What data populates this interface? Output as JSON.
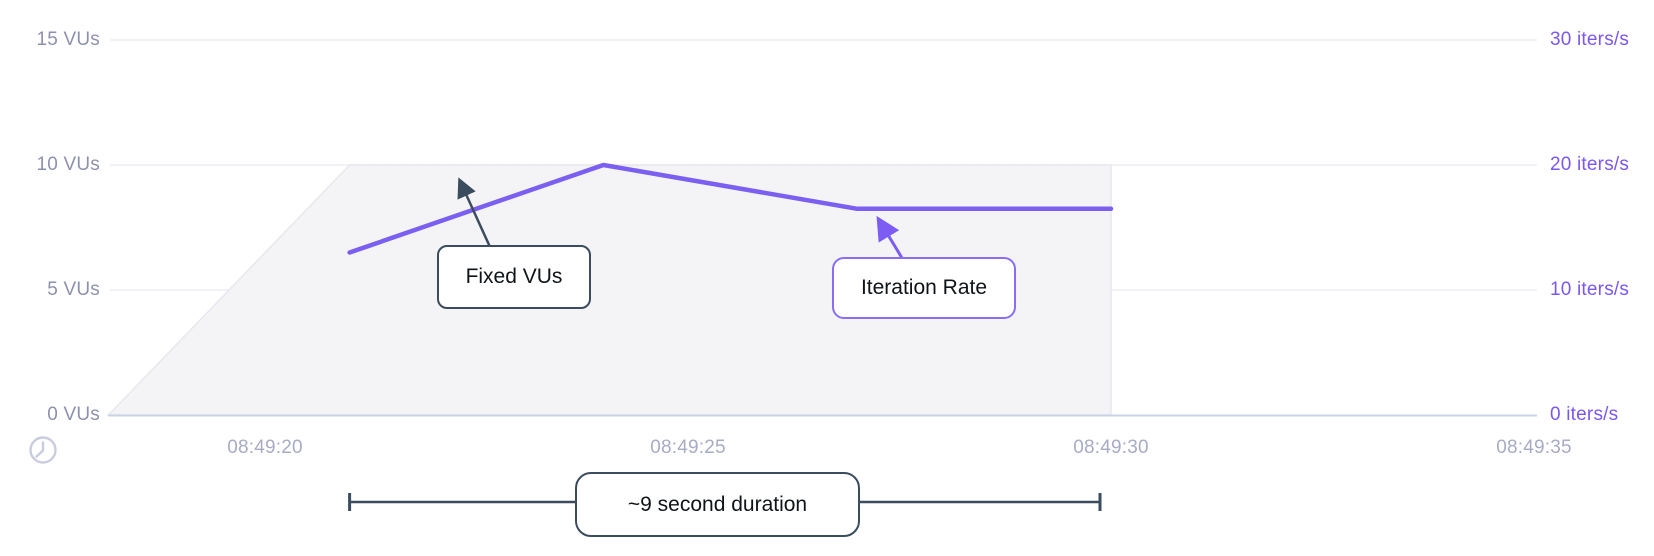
{
  "chart_data": {
    "type": "area+line",
    "title": "",
    "x_axis": {
      "unit": "time (hh:mm:ss)",
      "ticks": [
        {
          "t": 20,
          "label": "08:49:20"
        },
        {
          "t": 25,
          "label": "08:49:25"
        },
        {
          "t": 30,
          "label": "08:49:30"
        },
        {
          "t": 35,
          "label": "08:49:35"
        }
      ],
      "range_seconds_after_0849": [
        18.1,
        35.0
      ],
      "grid": false
    },
    "left_axis": {
      "title": "VUs",
      "range": [
        0,
        15
      ],
      "ticks": [
        {
          "v": 15,
          "label": "15 VUs"
        },
        {
          "v": 10,
          "label": "10 VUs"
        },
        {
          "v": 5,
          "label": "5 VUs"
        },
        {
          "v": 0,
          "label": "0 VUs"
        }
      ],
      "grid": true
    },
    "right_axis": {
      "title": "iters/s",
      "range": [
        0,
        30
      ],
      "ticks": [
        {
          "v": 30,
          "label": "30 iters/s"
        },
        {
          "v": 20,
          "label": "20 iters/s"
        },
        {
          "v": 10,
          "label": "10 iters/s"
        },
        {
          "v": 0,
          "label": "0 iters/s"
        }
      ],
      "grid": false
    },
    "series": [
      {
        "name": "VUs",
        "type": "area",
        "axis": "left",
        "points": [
          [
            18.15,
            0
          ],
          [
            21,
            10
          ],
          [
            30,
            10
          ],
          [
            30,
            0
          ]
        ]
      },
      {
        "name": "Iteration Rate",
        "type": "line",
        "axis": "right",
        "points": [
          [
            21,
            13
          ],
          [
            24,
            20
          ],
          [
            27,
            16.5
          ],
          [
            30,
            16.5
          ]
        ]
      }
    ],
    "legend_position": "none"
  },
  "annotations": {
    "fixed_vus": {
      "label": "Fixed VUs"
    },
    "iteration_rate": {
      "label": "Iteration Rate"
    },
    "duration": {
      "label": "~9 second duration"
    }
  },
  "icons": {
    "clock": "clock-icon"
  },
  "colors": {
    "series_line": "#7b5ff0",
    "series_area_fill": "#f4f4f7",
    "series_area_edge": "#e7e7ee",
    "left_axis_label": "#8e91ae",
    "right_axis_label": "#7b57f0",
    "x_axis_label": "#a8abc4",
    "gridline": "#ededf3",
    "axis_line": "#c9d3e6",
    "annotation_dark": "#3a4c5e",
    "annotation_purple": "#8a6cf5",
    "annotation_arrow_purple": "#7c5cf2",
    "clock_icon": "#c9cbe0"
  }
}
